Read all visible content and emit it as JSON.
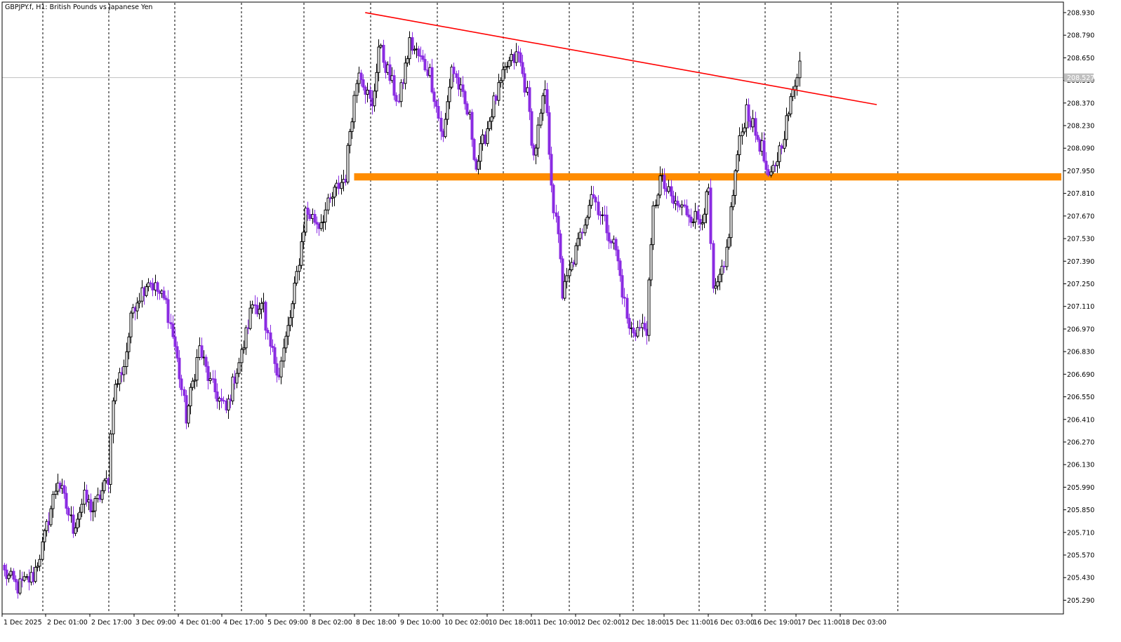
{
  "chart_data": {
    "type": "candlestick",
    "title": "GBPJPY.f, H1:  British Pounds vs Japanese Yen",
    "symbol": "GBPJPY.f",
    "timeframe": "H1",
    "description": "British Pounds vs Japanese Yen",
    "y_ticks": [
      "208.930",
      "208.790",
      "208.650",
      "208.510",
      "208.370",
      "208.230",
      "208.090",
      "207.950",
      "207.810",
      "207.670",
      "207.530",
      "207.390",
      "207.250",
      "207.110",
      "206.970",
      "206.830",
      "206.690",
      "206.550",
      "206.410",
      "206.270",
      "206.130",
      "205.990",
      "205.850",
      "205.710",
      "205.570",
      "205.430",
      "205.290"
    ],
    "y_tick_values": [
      208.93,
      208.79,
      208.65,
      208.51,
      208.37,
      208.23,
      208.09,
      207.95,
      207.81,
      207.67,
      207.53,
      207.39,
      207.25,
      207.11,
      206.97,
      206.83,
      206.69,
      206.55,
      206.41,
      206.27,
      206.13,
      205.99,
      205.85,
      205.71,
      205.57,
      205.43,
      205.29
    ],
    "ylim": [
      205.205,
      208.995
    ],
    "current_price": 208.527,
    "current_price_label": "208.527",
    "x_labels": [
      "1 Dec 2025",
      "2 Dec 01:00",
      "2 Dec 17:00",
      "3 Dec 09:00",
      "4 Dec 01:00",
      "4 Dec 17:00",
      "5 Dec 09:00",
      "8 Dec 02:00",
      "8 Dec 18:00",
      "9 Dec 10:00",
      "10 Dec 02:00",
      "10 Dec 18:00",
      "11 Dec 10:00",
      "12 Dec 02:00",
      "12 Dec 18:00",
      "15 Dec 11:00",
      "16 Dec 03:00",
      "16 Dec 19:00",
      "17 Dec 11:00",
      "18 Dec 03:00"
    ],
    "separator_times": [
      "2 Dec 2025",
      "2 Dec 17:00",
      "3 Dec 09:00",
      "4 Dec 01:00",
      "4 Dec 17:00",
      "5 Dec 09:00",
      "8 Dec 02:00",
      "8 Dec 18:00",
      "9 Dec 10:00",
      "10 Dec 02:00",
      "10 Dec 18:00",
      "11 Dec 10:00",
      "12 Dec 02:00",
      "12 Dec 18:00",
      "15 Dec 11:00",
      "16 Dec 03:00",
      "16 Dec 19:00",
      "17 Dec 11:00",
      "18 Dec 03:00",
      "18 Dec 19:00"
    ],
    "keypoints": [
      [
        0,
        205.46
      ],
      [
        6,
        205.37
      ],
      [
        13,
        205.44
      ],
      [
        17,
        205.62
      ],
      [
        24,
        206.04
      ],
      [
        31,
        205.74
      ],
      [
        36,
        205.92
      ],
      [
        40,
        205.85
      ],
      [
        47,
        206.05
      ],
      [
        49,
        206.57
      ],
      [
        54,
        206.75
      ],
      [
        58,
        207.11
      ],
      [
        65,
        207.28
      ],
      [
        73,
        207.13
      ],
      [
        77,
        206.86
      ],
      [
        82,
        206.42
      ],
      [
        88,
        206.85
      ],
      [
        93,
        206.63
      ],
      [
        100,
        206.46
      ],
      [
        104,
        206.68
      ],
      [
        107,
        206.81
      ],
      [
        112,
        207.13
      ],
      [
        117,
        207.1
      ],
      [
        118,
        206.93
      ],
      [
        124,
        206.7
      ],
      [
        130,
        207.11
      ],
      [
        136,
        207.7
      ],
      [
        142,
        207.62
      ],
      [
        150,
        207.84
      ],
      [
        154,
        207.92
      ],
      [
        156,
        208.21
      ],
      [
        160,
        208.6
      ],
      [
        166,
        208.33
      ],
      [
        169,
        208.72
      ],
      [
        178,
        208.37
      ],
      [
        183,
        208.74
      ],
      [
        192,
        208.56
      ],
      [
        198,
        208.14
      ],
      [
        202,
        208.6
      ],
      [
        210,
        208.27
      ],
      [
        213,
        207.97
      ],
      [
        221,
        208.37
      ],
      [
        227,
        208.6
      ],
      [
        232,
        208.67
      ],
      [
        236,
        208.42
      ],
      [
        239,
        208.03
      ],
      [
        244,
        208.45
      ],
      [
        248,
        207.72
      ],
      [
        251,
        207.43
      ],
      [
        252,
        207.18
      ],
      [
        260,
        207.54
      ],
      [
        265,
        207.82
      ],
      [
        272,
        207.6
      ],
      [
        276,
        207.46
      ],
      [
        282,
        206.96
      ],
      [
        290,
        206.98
      ],
      [
        293,
        207.7
      ],
      [
        296,
        207.9
      ],
      [
        302,
        207.75
      ],
      [
        308,
        207.7
      ],
      [
        314,
        207.64
      ],
      [
        318,
        207.81
      ],
      [
        320,
        207.17
      ],
      [
        325,
        207.34
      ],
      [
        331,
        208.05
      ],
      [
        335,
        208.34
      ],
      [
        339,
        208.18
      ],
      [
        342,
        208.09
      ],
      [
        345,
        207.87
      ],
      [
        350,
        208.08
      ],
      [
        355,
        208.37
      ],
      [
        359,
        208.63
      ]
    ],
    "trendline": {
      "start": [
        163,
        208.93
      ],
      "end": [
        394,
        208.36
      ],
      "color": "#ff0000"
    },
    "support_zone": {
      "from_bar": 158,
      "to_bar": 395,
      "low": 207.89,
      "high": 207.935,
      "color": "#ff8c00"
    },
    "colors": {
      "bull_body": "#ffffff",
      "bull_outline": "#000000",
      "bear": "#8a2be2",
      "grid": "#000000",
      "price_line": "#c0c0c0",
      "price_label_bg": "#c0c0c0",
      "price_label_text": "#ffffff"
    }
  }
}
